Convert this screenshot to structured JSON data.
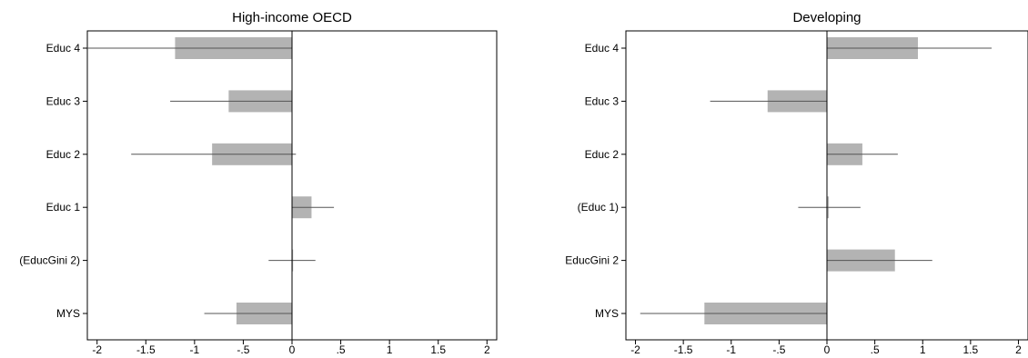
{
  "chart_data": [
    {
      "type": "bar",
      "orientation": "horizontal",
      "title": "High-income OECD",
      "categories": [
        "Educ 4",
        "Educ 3",
        "Educ 2",
        "Educ 1",
        "(EducGini 2)",
        "MYS"
      ],
      "values": [
        -1.2,
        -0.65,
        -0.82,
        0.2,
        0.0,
        -0.57
      ],
      "ci_low": [
        -2.1,
        -1.25,
        -1.65,
        0.0,
        -0.24,
        -0.9
      ],
      "ci_high": [
        0.0,
        0.0,
        0.04,
        0.43,
        0.24,
        0.0
      ],
      "xlim": [
        -2.1,
        2.1
      ],
      "xticks": [
        -2,
        -1.5,
        -1,
        -0.5,
        0,
        0.5,
        1,
        1.5,
        2
      ],
      "xtick_labels": [
        "-2",
        "-1.5",
        "-1",
        "-.5",
        "0",
        ".5",
        "1",
        "1.5",
        "2"
      ],
      "grid": false,
      "zero_line": true,
      "colors": {
        "bar": "#b3b3b3",
        "whisker": "#555555",
        "frame": "#000000"
      }
    },
    {
      "type": "bar",
      "orientation": "horizontal",
      "title": "Developing",
      "categories": [
        "Educ 4",
        "Educ 3",
        "Educ 2",
        "(Educ 1)",
        "EducGini 2",
        "MYS"
      ],
      "values": [
        0.95,
        -0.62,
        0.37,
        0.02,
        0.71,
        -1.28
      ],
      "ci_low": [
        0.0,
        -1.22,
        0.0,
        -0.3,
        0.0,
        -1.95
      ],
      "ci_high": [
        1.72,
        0.0,
        0.74,
        0.35,
        1.1,
        0.0
      ],
      "xlim": [
        -2.1,
        2.1
      ],
      "xticks": [
        -2,
        -1.5,
        -1,
        -0.5,
        0,
        0.5,
        1,
        1.5,
        2
      ],
      "xtick_labels": [
        "-2",
        "-1.5",
        "-1",
        "-.5",
        "0",
        ".5",
        "1",
        "1.5",
        "2"
      ],
      "grid": false,
      "zero_line": true,
      "colors": {
        "bar": "#b3b3b3",
        "whisker": "#555555",
        "frame": "#000000"
      }
    }
  ]
}
